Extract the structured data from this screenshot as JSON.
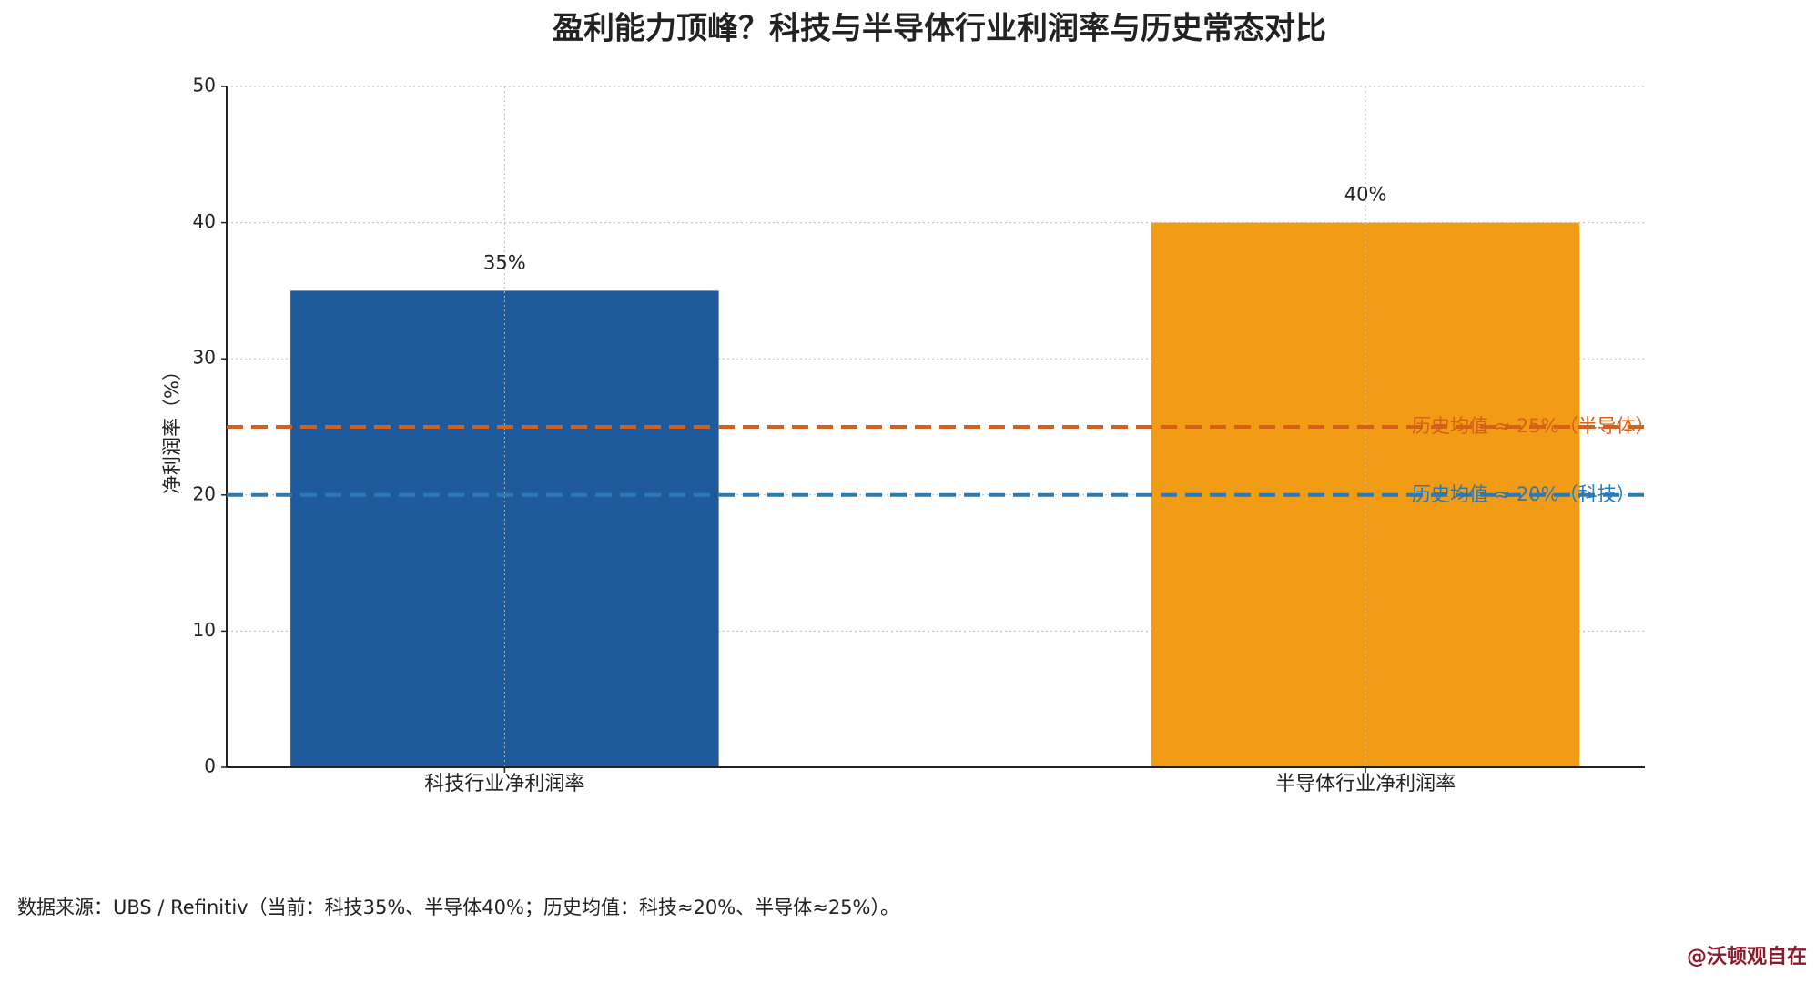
{
  "chart_data": {
    "type": "bar",
    "title": "盈利能力顶峰？科技与半导体行业利润率与历史常态对比",
    "ylabel": "净利润率（%）",
    "categories": [
      "科技行业净利润率",
      "半导体行业净利润率"
    ],
    "values": [
      35,
      40
    ],
    "value_labels": [
      "35%",
      "40%"
    ],
    "colors": [
      "#1f5a9c",
      "#f29c15"
    ],
    "ylim": [
      0,
      50
    ],
    "yticks": [
      0,
      10,
      20,
      30,
      40,
      50
    ],
    "grid": true,
    "reference_lines": [
      {
        "value": 25,
        "label": "历史均值 ≈ 25%（半导体）",
        "color": "#d4601a"
      },
      {
        "value": 20,
        "label": "历史均值 ≈ 20%（科技）",
        "color": "#2a7ab8"
      }
    ]
  },
  "footnote": "数据来源：UBS / Refinitiv（当前：科技35%、半导体40%；历史均值：科技≈20%、半导体≈25%）。",
  "watermark": "@沃顿观自在"
}
